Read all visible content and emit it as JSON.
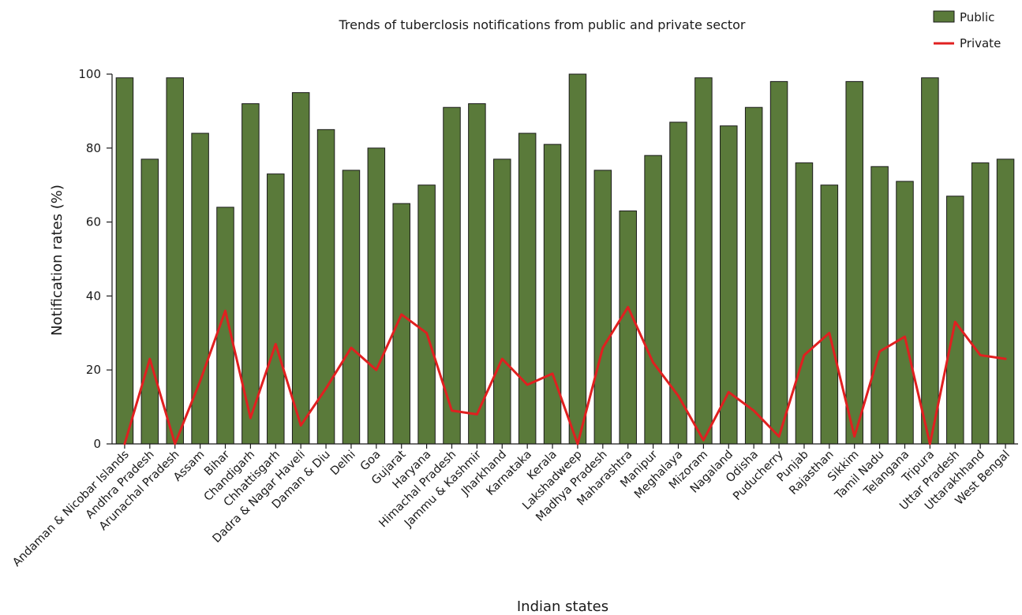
{
  "chart_data": {
    "type": "bar",
    "title": "Trends of tuberclosis notifications from public and private sector",
    "xlabel": "Indian states",
    "ylabel": "Notification rates (%)",
    "ylim": [
      0,
      100
    ],
    "yticks": [
      0,
      20,
      40,
      60,
      80,
      100
    ],
    "grid": false,
    "legend_position": "top-right",
    "categories": [
      "Andaman & Nicobar Islands",
      "Andhra Pradesh",
      "Arunachal Pradesh",
      "Assam",
      "Bihar",
      "Chandigarh",
      "Chhattisgarh",
      "Dadra & Nagar Haveli",
      "Daman & Diu",
      "Delhi",
      "Goa",
      "Gujarat",
      "Haryana",
      "Himachal Pradesh",
      "Jammu & Kashmir",
      "Jharkhand",
      "Karnataka",
      "Kerala",
      "Lakshadweep",
      "Madhya Pradesh",
      "Maharashtra",
      "Manipur",
      "Meghalaya",
      "Mizoram",
      "Nagaland",
      "Odisha",
      "Puducherry",
      "Punjab",
      "Rajasthan",
      "Sikkim",
      "Tamil Nadu",
      "Telangana",
      "Tripura",
      "Uttar Pradesh",
      "Uttarakhhand",
      "West Bengal"
    ],
    "series": [
      {
        "name": "Public",
        "kind": "bar",
        "color": "#5a7a3a",
        "values": [
          99,
          77,
          99,
          84,
          64,
          92,
          73,
          95,
          85,
          74,
          80,
          65,
          70,
          91,
          92,
          77,
          84,
          81,
          100,
          74,
          63,
          78,
          87,
          99,
          86,
          91,
          98,
          76,
          70,
          98,
          75,
          71,
          99,
          67,
          76,
          77
        ]
      },
      {
        "name": "Private",
        "kind": "line",
        "color": "#e02020",
        "values": [
          0,
          23,
          0,
          17,
          36,
          7,
          27,
          5,
          15,
          26,
          20,
          35,
          30,
          9,
          8,
          23,
          16,
          19,
          0,
          26,
          37,
          22,
          13,
          1,
          14,
          9,
          2,
          24,
          30,
          2,
          25,
          29,
          0,
          33,
          24,
          23
        ]
      }
    ]
  }
}
